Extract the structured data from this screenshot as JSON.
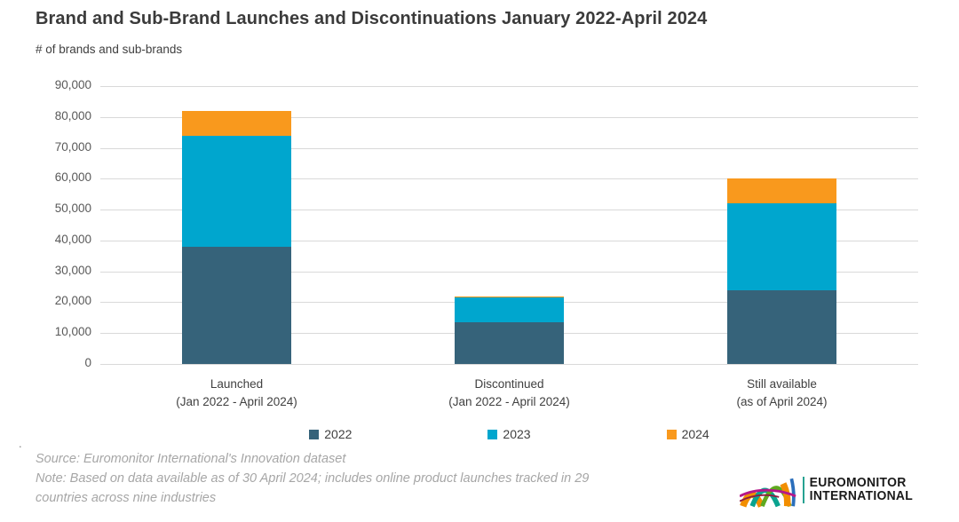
{
  "header": {
    "title": "Brand and Sub-Brand Launches and Discontinuations January 2022-April 2024",
    "subtitle": "# of brands and sub-brands"
  },
  "chart_data": {
    "type": "bar",
    "stacked": true,
    "title": "Brand and Sub-Brand Launches and Discontinuations January 2022-April 2024",
    "ylabel": "# of brands and sub-brands",
    "xlabel": "",
    "ylim": [
      0,
      90000
    ],
    "grid": "horizontal",
    "legend_position": "bottom",
    "categories": [
      {
        "line1": "Launched",
        "line2": "(Jan 2022 - April 2024)"
      },
      {
        "line1": "Discontinued",
        "line2": "(Jan 2022 - April 2024)"
      },
      {
        "line1": "Still available",
        "line2": "(as of April 2024)"
      }
    ],
    "series": [
      {
        "name": "2022",
        "color": "#36637A",
        "values": [
          38000,
          13500,
          24000
        ]
      },
      {
        "name": "2023",
        "color": "#00A6CE",
        "values": [
          36000,
          8000,
          28000
        ]
      },
      {
        "name": "2024",
        "color": "#F9991D",
        "values": [
          8000,
          500,
          8000
        ]
      }
    ],
    "totals": [
      82000,
      22000,
      60000
    ],
    "yticks": [
      {
        "value": 0,
        "label": "0"
      },
      {
        "value": 10000,
        "label": "10,000"
      },
      {
        "value": 20000,
        "label": "20,000"
      },
      {
        "value": 30000,
        "label": "30,000"
      },
      {
        "value": 40000,
        "label": "40,000"
      },
      {
        "value": 50000,
        "label": "50,000"
      },
      {
        "value": 60000,
        "label": "60,000"
      },
      {
        "value": 70000,
        "label": "70,000"
      },
      {
        "value": 80000,
        "label": "80,000"
      },
      {
        "value": 90000,
        "label": "90,000"
      }
    ]
  },
  "colors": {
    "grid": "#d9d9d9",
    "axis_text": "#595959",
    "category_text": "#404040",
    "title_text": "#3b3b3b",
    "footer_text": "#a6a6a6"
  },
  "footer": {
    "stray_dot": ".",
    "source": "Source: Euromonitor International's Innovation dataset",
    "note_line1": "Note: Based on data available as of 30 April 2024; includes online product launches tracked in 29",
    "note_line2": "countries across nine industries"
  },
  "logo": {
    "icon": "euromonitor-arcs-logo",
    "line1": "EUROMONITOR",
    "line2": "INTERNATIONAL"
  }
}
